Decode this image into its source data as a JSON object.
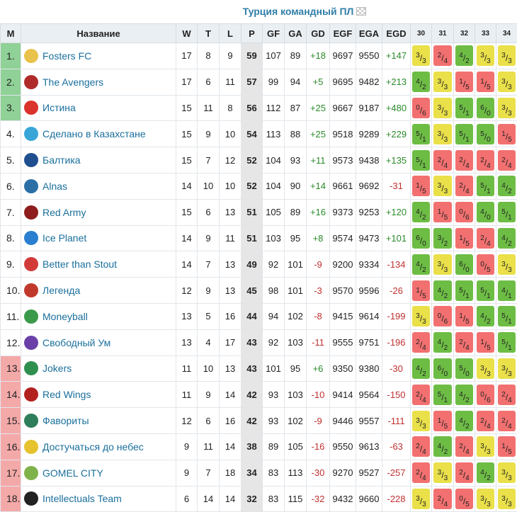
{
  "title": "Турция командный ПЛ",
  "headers": {
    "pos": "М",
    "name": "Название",
    "w": "W",
    "t": "T",
    "l": "L",
    "p": "P",
    "gf": "GF",
    "ga": "GA",
    "gd": "GD",
    "egf": "EGF",
    "ega": "EGA",
    "egd": "EGD",
    "rounds": [
      "30",
      "31",
      "32",
      "33",
      "34"
    ]
  },
  "colors": {
    "win": "#6dbd45",
    "draw": "#e9e04a",
    "loss": "#f27070",
    "promo": "#8fd196",
    "releg": "#f4a9a9",
    "link": "#1a6f9c"
  },
  "rows": [
    {
      "pos": "1.",
      "zone": "g",
      "name": "Fosters FC",
      "logo": "fosters-logo",
      "logo_color": "#e8c24a",
      "w": "17",
      "t": "8",
      "l": "9",
      "p": "59",
      "gf": "107",
      "ga": "89",
      "gd": "+18",
      "egf": "9697",
      "ega": "9550",
      "egd": "+147",
      "results": [
        {
          "a": "3",
          "b": "3",
          "r": "D"
        },
        {
          "a": "2",
          "b": "4",
          "r": "L"
        },
        {
          "a": "4",
          "b": "2",
          "r": "W"
        },
        {
          "a": "3",
          "b": "3",
          "r": "D"
        },
        {
          "a": "3",
          "b": "3",
          "r": "D"
        }
      ]
    },
    {
      "pos": "2.",
      "zone": "g",
      "name": "The Avengers",
      "logo": "avengers-logo",
      "logo_color": "#b02a2a",
      "w": "17",
      "t": "6",
      "l": "11",
      "p": "57",
      "gf": "99",
      "ga": "94",
      "gd": "+5",
      "egf": "9695",
      "ega": "9482",
      "egd": "+213",
      "results": [
        {
          "a": "4",
          "b": "2",
          "r": "W"
        },
        {
          "a": "3",
          "b": "3",
          "r": "D"
        },
        {
          "a": "1",
          "b": "5",
          "r": "L"
        },
        {
          "a": "1",
          "b": "5",
          "r": "L"
        },
        {
          "a": "3",
          "b": "3",
          "r": "D"
        }
      ]
    },
    {
      "pos": "3.",
      "zone": "g",
      "name": "Истина",
      "logo": "truth-logo",
      "logo_color": "#d9332b",
      "w": "15",
      "t": "11",
      "l": "8",
      "p": "56",
      "gf": "112",
      "ga": "87",
      "gd": "+25",
      "egf": "9667",
      "ega": "9187",
      "egd": "+480",
      "results": [
        {
          "a": "0",
          "b": "6",
          "r": "L"
        },
        {
          "a": "3",
          "b": "3",
          "r": "D"
        },
        {
          "a": "5",
          "b": "1",
          "r": "W"
        },
        {
          "a": "6",
          "b": "0",
          "r": "W"
        },
        {
          "a": "3",
          "b": "3",
          "r": "D"
        }
      ]
    },
    {
      "pos": "4.",
      "zone": "",
      "name": "Сделано в Казахстане",
      "logo": "kazakhstan-logo",
      "logo_color": "#3aa6d8",
      "w": "15",
      "t": "9",
      "l": "10",
      "p": "54",
      "gf": "113",
      "ga": "88",
      "gd": "+25",
      "egf": "9518",
      "ega": "9289",
      "egd": "+229",
      "results": [
        {
          "a": "5",
          "b": "1",
          "r": "W"
        },
        {
          "a": "3",
          "b": "3",
          "r": "D"
        },
        {
          "a": "5",
          "b": "1",
          "r": "W"
        },
        {
          "a": "5",
          "b": "0",
          "r": "W"
        },
        {
          "a": "1",
          "b": "5",
          "r": "L"
        }
      ]
    },
    {
      "pos": "5.",
      "zone": "",
      "name": "Балтика",
      "logo": "baltika-logo",
      "logo_color": "#1f4f8f",
      "w": "15",
      "t": "7",
      "l": "12",
      "p": "52",
      "gf": "104",
      "ga": "93",
      "gd": "+11",
      "egf": "9573",
      "ega": "9438",
      "egd": "+135",
      "results": [
        {
          "a": "5",
          "b": "1",
          "r": "W"
        },
        {
          "a": "2",
          "b": "4",
          "r": "L"
        },
        {
          "a": "2",
          "b": "4",
          "r": "L"
        },
        {
          "a": "2",
          "b": "4",
          "r": "L"
        },
        {
          "a": "2",
          "b": "4",
          "r": "L"
        }
      ]
    },
    {
      "pos": "6.",
      "zone": "",
      "name": "Alnas",
      "logo": "alnas-logo",
      "logo_color": "#2c6fa6",
      "w": "14",
      "t": "10",
      "l": "10",
      "p": "52",
      "gf": "104",
      "ga": "90",
      "gd": "+14",
      "egf": "9661",
      "ega": "9692",
      "egd": "-31",
      "results": [
        {
          "a": "1",
          "b": "5",
          "r": "L"
        },
        {
          "a": "3",
          "b": "3",
          "r": "D"
        },
        {
          "a": "2",
          "b": "4",
          "r": "L"
        },
        {
          "a": "5",
          "b": "1",
          "r": "W"
        },
        {
          "a": "4",
          "b": "2",
          "r": "W"
        }
      ]
    },
    {
      "pos": "7.",
      "zone": "",
      "name": "Red Army",
      "logo": "red-army-logo",
      "logo_color": "#8e1c1c",
      "w": "15",
      "t": "6",
      "l": "13",
      "p": "51",
      "gf": "105",
      "ga": "89",
      "gd": "+16",
      "egf": "9373",
      "ega": "9253",
      "egd": "+120",
      "results": [
        {
          "a": "4",
          "b": "2",
          "r": "W"
        },
        {
          "a": "1",
          "b": "5",
          "r": "L"
        },
        {
          "a": "0",
          "b": "6",
          "r": "L"
        },
        {
          "a": "4",
          "b": "0",
          "r": "W"
        },
        {
          "a": "5",
          "b": "1",
          "r": "W"
        }
      ]
    },
    {
      "pos": "8.",
      "zone": "",
      "name": "Ice Planet",
      "logo": "ice-planet-logo",
      "logo_color": "#2a7fd0",
      "w": "14",
      "t": "9",
      "l": "11",
      "p": "51",
      "gf": "103",
      "ga": "95",
      "gd": "+8",
      "egf": "9574",
      "ega": "9473",
      "egd": "+101",
      "results": [
        {
          "a": "6",
          "b": "0",
          "r": "W"
        },
        {
          "a": "3",
          "b": "2",
          "r": "W"
        },
        {
          "a": "1",
          "b": "5",
          "r": "L"
        },
        {
          "a": "2",
          "b": "4",
          "r": "L"
        },
        {
          "a": "4",
          "b": "2",
          "r": "W"
        }
      ]
    },
    {
      "pos": "9.",
      "zone": "",
      "name": "Better than Stout",
      "logo": "bts-logo",
      "logo_color": "#d23a3a",
      "w": "14",
      "t": "7",
      "l": "13",
      "p": "49",
      "gf": "92",
      "ga": "101",
      "gd": "-9",
      "egf": "9200",
      "ega": "9334",
      "egd": "-134",
      "results": [
        {
          "a": "4",
          "b": "2",
          "r": "W"
        },
        {
          "a": "3",
          "b": "3",
          "r": "D"
        },
        {
          "a": "6",
          "b": "0",
          "r": "W"
        },
        {
          "a": "0",
          "b": "5",
          "r": "L"
        },
        {
          "a": "3",
          "b": "3",
          "r": "D"
        }
      ]
    },
    {
      "pos": "10.",
      "zone": "",
      "name": "Легенда",
      "logo": "legenda-logo",
      "logo_color": "#c0392b",
      "w": "12",
      "t": "9",
      "l": "13",
      "p": "45",
      "gf": "98",
      "ga": "101",
      "gd": "-3",
      "egf": "9570",
      "ega": "9596",
      "egd": "-26",
      "results": [
        {
          "a": "1",
          "b": "5",
          "r": "L"
        },
        {
          "a": "4",
          "b": "2",
          "r": "W"
        },
        {
          "a": "5",
          "b": "1",
          "r": "W"
        },
        {
          "a": "5",
          "b": "1",
          "r": "W"
        },
        {
          "a": "4",
          "b": "1",
          "r": "W"
        }
      ]
    },
    {
      "pos": "11.",
      "zone": "",
      "name": "Moneyball",
      "logo": "moneyball-logo",
      "logo_color": "#3a9a4a",
      "w": "13",
      "t": "5",
      "l": "16",
      "p": "44",
      "gf": "94",
      "ga": "102",
      "gd": "-8",
      "egf": "9415",
      "ega": "9614",
      "egd": "-199",
      "results": [
        {
          "a": "3",
          "b": "3",
          "r": "D"
        },
        {
          "a": "0",
          "b": "6",
          "r": "L"
        },
        {
          "a": "1",
          "b": "5",
          "r": "L"
        },
        {
          "a": "4",
          "b": "2",
          "r": "W"
        },
        {
          "a": "5",
          "b": "1",
          "r": "W"
        }
      ]
    },
    {
      "pos": "12.",
      "zone": "",
      "name": "Свободный Ум",
      "logo": "free-mind-logo",
      "logo_color": "#6a3fa8",
      "w": "13",
      "t": "4",
      "l": "17",
      "p": "43",
      "gf": "92",
      "ga": "103",
      "gd": "-11",
      "egf": "9555",
      "ega": "9751",
      "egd": "-196",
      "results": [
        {
          "a": "2",
          "b": "4",
          "r": "L"
        },
        {
          "a": "4",
          "b": "2",
          "r": "W"
        },
        {
          "a": "2",
          "b": "4",
          "r": "L"
        },
        {
          "a": "1",
          "b": "5",
          "r": "L"
        },
        {
          "a": "5",
          "b": "1",
          "r": "W"
        }
      ]
    },
    {
      "pos": "13.",
      "zone": "r",
      "name": "Jokers",
      "logo": "jokers-logo",
      "logo_color": "#2f8f4f",
      "w": "11",
      "t": "10",
      "l": "13",
      "p": "43",
      "gf": "101",
      "ga": "95",
      "gd": "+6",
      "egf": "9350",
      "ega": "9380",
      "egd": "-30",
      "results": [
        {
          "a": "4",
          "b": "2",
          "r": "W"
        },
        {
          "a": "6",
          "b": "0",
          "r": "W"
        },
        {
          "a": "5",
          "b": "0",
          "r": "W"
        },
        {
          "a": "3",
          "b": "3",
          "r": "D"
        },
        {
          "a": "3",
          "b": "3",
          "r": "D"
        }
      ]
    },
    {
      "pos": "14.",
      "zone": "r",
      "name": "Red Wings",
      "logo": "red-wings-logo",
      "logo_color": "#b32020",
      "w": "11",
      "t": "9",
      "l": "14",
      "p": "42",
      "gf": "93",
      "ga": "103",
      "gd": "-10",
      "egf": "9414",
      "ega": "9564",
      "egd": "-150",
      "results": [
        {
          "a": "2",
          "b": "4",
          "r": "L"
        },
        {
          "a": "5",
          "b": "1",
          "r": "W"
        },
        {
          "a": "4",
          "b": "2",
          "r": "W"
        },
        {
          "a": "0",
          "b": "6",
          "r": "L"
        },
        {
          "a": "2",
          "b": "4",
          "r": "L"
        }
      ]
    },
    {
      "pos": "15.",
      "zone": "r",
      "name": "Фавориты",
      "logo": "favorites-logo",
      "logo_color": "#2e7d5b",
      "w": "12",
      "t": "6",
      "l": "16",
      "p": "42",
      "gf": "93",
      "ga": "102",
      "gd": "-9",
      "egf": "9446",
      "ega": "9557",
      "egd": "-111",
      "results": [
        {
          "a": "3",
          "b": "3",
          "r": "D"
        },
        {
          "a": "1",
          "b": "5",
          "r": "L"
        },
        {
          "a": "4",
          "b": "2",
          "r": "W"
        },
        {
          "a": "2",
          "b": "4",
          "r": "L"
        },
        {
          "a": "2",
          "b": "4",
          "r": "L"
        }
      ]
    },
    {
      "pos": "16.",
      "zone": "r",
      "name": "Достучаться до небес",
      "logo": "knocking-logo",
      "logo_color": "#e6c22f",
      "w": "9",
      "t": "11",
      "l": "14",
      "p": "38",
      "gf": "89",
      "ga": "105",
      "gd": "-16",
      "egf": "9550",
      "ega": "9613",
      "egd": "-63",
      "results": [
        {
          "a": "2",
          "b": "4",
          "r": "L"
        },
        {
          "a": "4",
          "b": "2",
          "r": "W"
        },
        {
          "a": "2",
          "b": "4",
          "r": "L"
        },
        {
          "a": "3",
          "b": "3",
          "r": "D"
        },
        {
          "a": "1",
          "b": "5",
          "r": "L"
        }
      ]
    },
    {
      "pos": "17.",
      "zone": "r",
      "name": "GOMEL CITY",
      "logo": "gomel-logo",
      "logo_color": "#7fb24a",
      "w": "9",
      "t": "7",
      "l": "18",
      "p": "34",
      "gf": "83",
      "ga": "113",
      "gd": "-30",
      "egf": "9270",
      "ega": "9527",
      "egd": "-257",
      "results": [
        {
          "a": "2",
          "b": "4",
          "r": "L"
        },
        {
          "a": "3",
          "b": "3",
          "r": "D"
        },
        {
          "a": "2",
          "b": "4",
          "r": "L"
        },
        {
          "a": "4",
          "b": "2",
          "r": "W"
        },
        {
          "a": "3",
          "b": "3",
          "r": "D"
        }
      ]
    },
    {
      "pos": "18.",
      "zone": "r",
      "name": "Intellectuals Team",
      "logo": "intellectuals-logo",
      "logo_color": "#222222",
      "w": "6",
      "t": "14",
      "l": "14",
      "p": "32",
      "gf": "83",
      "ga": "115",
      "gd": "-32",
      "egf": "9432",
      "ega": "9660",
      "egd": "-228",
      "results": [
        {
          "a": "3",
          "b": "3",
          "r": "D"
        },
        {
          "a": "2",
          "b": "4",
          "r": "L"
        },
        {
          "a": "0",
          "b": "5",
          "r": "L"
        },
        {
          "a": "3",
          "b": "3",
          "r": "D"
        },
        {
          "a": "3",
          "b": "3",
          "r": "D"
        }
      ]
    }
  ]
}
